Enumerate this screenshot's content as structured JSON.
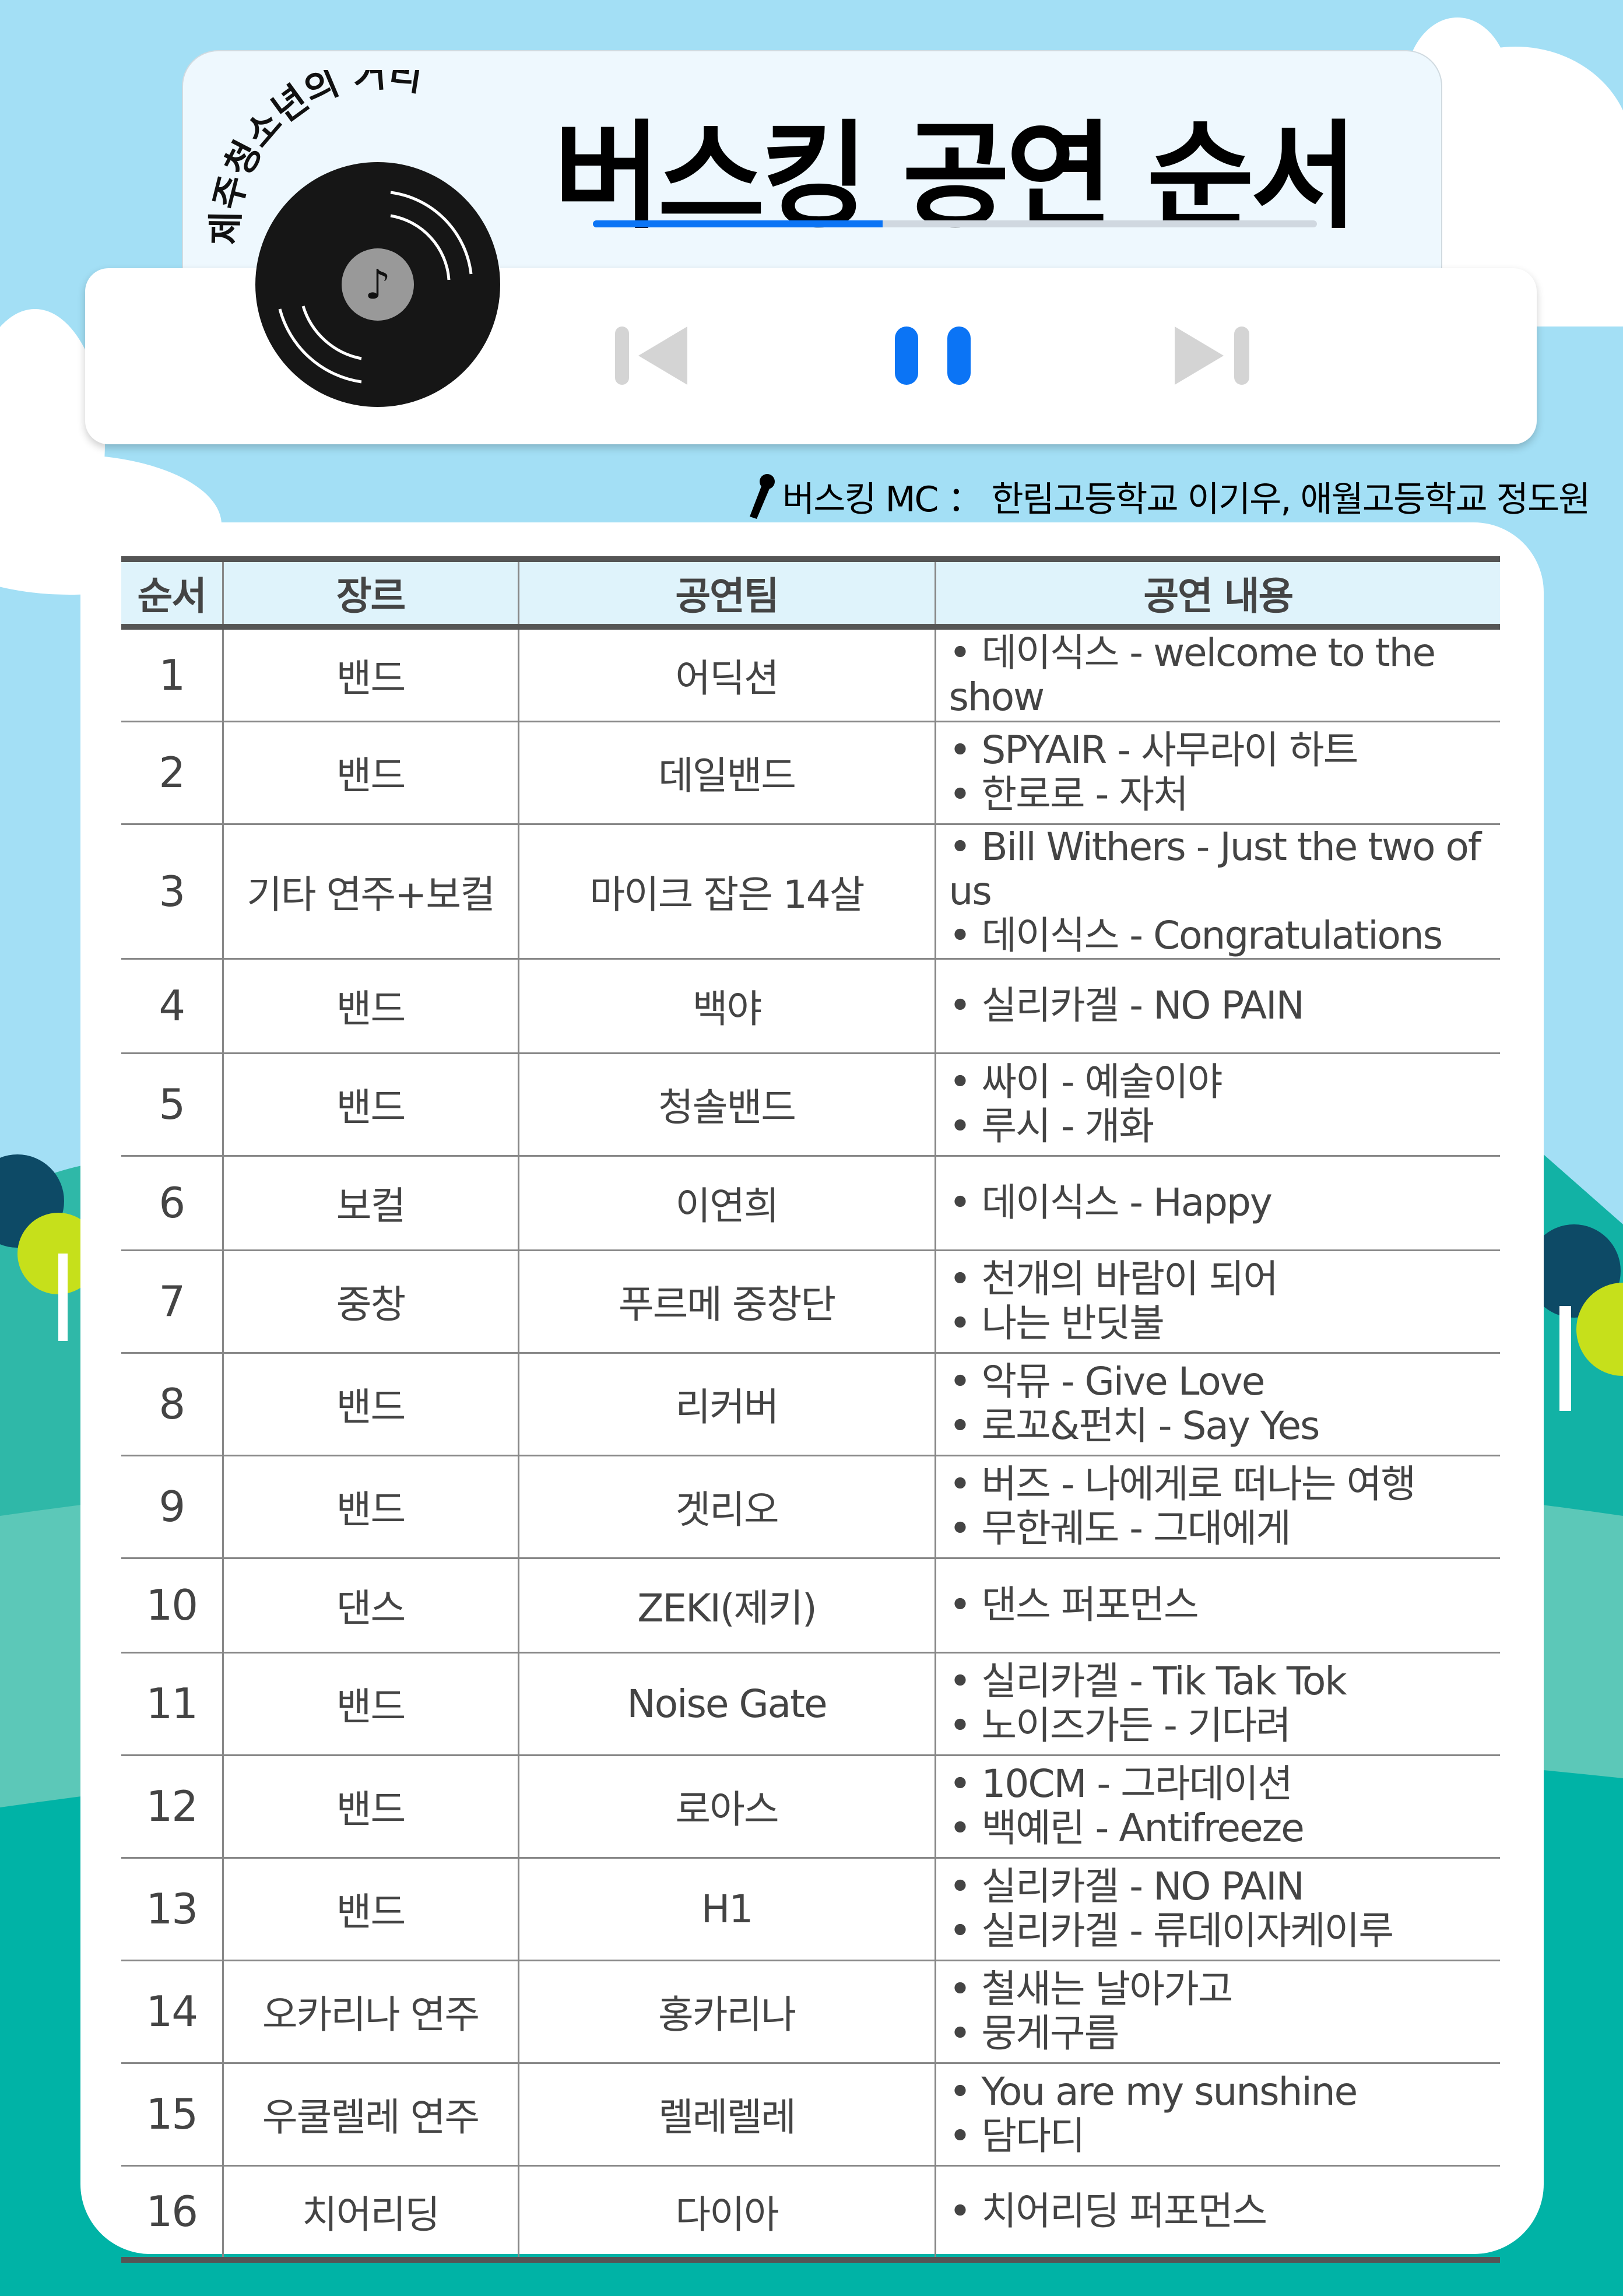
{
  "header": {
    "arc_title": "제주청소년의 거리",
    "title": "버스킹 공연 순서",
    "progress_percent": 40
  },
  "player": {
    "prev_icon": "skip-previous-icon",
    "pause_icon": "pause-icon",
    "next_icon": "skip-next-icon",
    "accent_color": "#0b74f5"
  },
  "mc": {
    "icon": "microphone-icon",
    "text": "버스킹 MC ： 한림고등학교 이기우, 애월고등학교 정도원"
  },
  "table": {
    "headers": [
      "순서",
      "장르",
      "공연팀",
      "공연 내용"
    ],
    "rows": [
      {
        "no": "1",
        "genre": "밴드",
        "team": "어딕션",
        "songs": [
          "• 데이식스 - welcome to the show"
        ]
      },
      {
        "no": "2",
        "genre": "밴드",
        "team": "데일밴드",
        "songs": [
          "• SPYAIR - 사무라이 하트",
          "• 한로로 - 자처"
        ]
      },
      {
        "no": "3",
        "genre": "기타 연주+보컬",
        "team": "마이크 잡은 14살",
        "songs": [
          "• Bill Withers - Just the two of us",
          "• 데이식스 - Congratulations"
        ]
      },
      {
        "no": "4",
        "genre": "밴드",
        "team": "백야",
        "songs": [
          "• 실리카겔 - NO PAIN"
        ]
      },
      {
        "no": "5",
        "genre": "밴드",
        "team": "청솔밴드",
        "songs": [
          "• 싸이 - 예술이야",
          "• 루시 - 개화"
        ]
      },
      {
        "no": "6",
        "genre": "보컬",
        "team": "이연희",
        "songs": [
          "• 데이식스 - Happy"
        ]
      },
      {
        "no": "7",
        "genre": "중창",
        "team": "푸르메 중창단",
        "songs": [
          "• 천개의 바람이 되어",
          "• 나는 반딧불"
        ]
      },
      {
        "no": "8",
        "genre": "밴드",
        "team": "리커버",
        "songs": [
          "• 악뮤 - Give Love",
          "• 로꼬&펀치 - Say Yes"
        ]
      },
      {
        "no": "9",
        "genre": "밴드",
        "team": "겟리오",
        "songs": [
          "• 버즈 - 나에게로 떠나는 여행",
          "• 무한궤도 - 그대에게"
        ]
      },
      {
        "no": "10",
        "genre": "댄스",
        "team": "ZEKI(제키)",
        "songs": [
          "• 댄스 퍼포먼스"
        ]
      },
      {
        "no": "11",
        "genre": "밴드",
        "team": "Noise Gate",
        "songs": [
          "• 실리카겔 - Tik Tak Tok",
          "• 노이즈가든 - 기다려"
        ]
      },
      {
        "no": "12",
        "genre": "밴드",
        "team": "로아스",
        "songs": [
          "• 10CM - 그라데이션",
          "• 백예린 - Antifreeze"
        ]
      },
      {
        "no": "13",
        "genre": "밴드",
        "team": "H1",
        "songs": [
          "• 실리카겔 - NO PAIN",
          "• 실리카겔 - 류데이자케이루"
        ]
      },
      {
        "no": "14",
        "genre": "오카리나 연주",
        "team": "홍카리나",
        "songs": [
          "• 철새는 날아가고",
          "• 뭉게구름"
        ]
      },
      {
        "no": "15",
        "genre": "우쿨렐레 연주",
        "team": "렐레렐레",
        "songs": [
          "• You are my sunshine",
          "• 담다디"
        ]
      },
      {
        "no": "16",
        "genre": "치어리딩",
        "team": "다이아",
        "songs": [
          "• 치어리딩 퍼포먼스"
        ]
      }
    ]
  }
}
